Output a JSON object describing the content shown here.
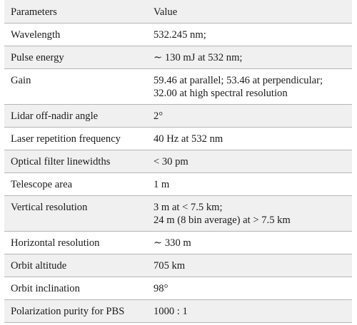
{
  "table": {
    "headers": [
      "Parameters",
      "Value"
    ],
    "rows": [
      {
        "param": "Wavelength",
        "value": [
          "532.245 nm;"
        ]
      },
      {
        "param": "Pulse energy",
        "value": [
          "∼ 130 mJ at 532 nm;"
        ]
      },
      {
        "param": "Gain",
        "value": [
          "59.46 at parallel; 53.46 at perpendicular;",
          "32.00 at high spectral resolution"
        ]
      },
      {
        "param": "Lidar off-nadir angle",
        "value": [
          "2°"
        ]
      },
      {
        "param": "Laser repetition frequency",
        "value": [
          "40 Hz at 532 nm"
        ]
      },
      {
        "param": "Optical filter linewidths",
        "value": [
          "< 30 pm"
        ]
      },
      {
        "param": "Telescope area",
        "value": [
          "1 m"
        ]
      },
      {
        "param": "Vertical resolution",
        "value": [
          "3 m at < 7.5 km;",
          "24 m (8 bin average) at > 7.5 km"
        ]
      },
      {
        "param": "Horizontal resolution",
        "value": [
          "∼ 330 m"
        ]
      },
      {
        "param": "Orbit altitude",
        "value": [
          "705 km"
        ]
      },
      {
        "param": "Orbit inclination",
        "value": [
          "98°"
        ]
      },
      {
        "param": "Polarization purity for PBS",
        "value": [
          "1000 : 1"
        ]
      }
    ]
  }
}
